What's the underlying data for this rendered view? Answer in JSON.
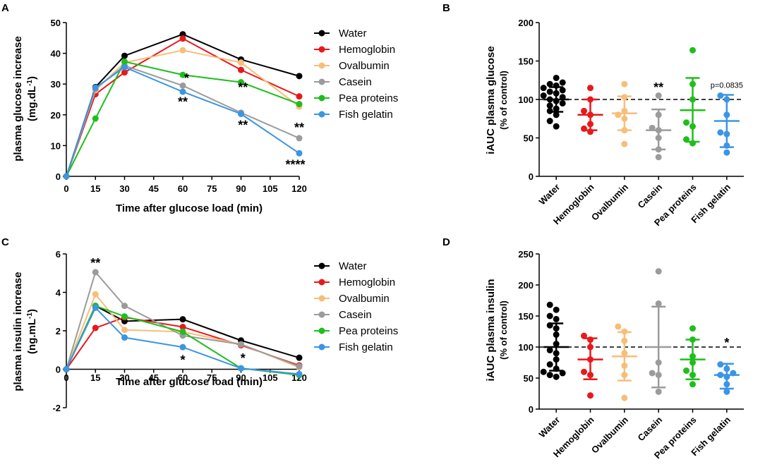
{
  "panels": {
    "A": "A",
    "B": "B",
    "C": "C",
    "D": "D"
  },
  "colors": {
    "Water": "#000000",
    "Hemoglobin": "#e8181b",
    "Ovalbumin": "#f7be7a",
    "Casein": "#9b9b9b",
    "Pea proteins": "#1fbe1d",
    "Fish gelatin": "#3a95e4"
  },
  "chart_data": [
    {
      "id": "A",
      "type": "line",
      "xlabel": "Time after glucose load (min)",
      "ylabel": "plasma glucose increase",
      "yunit": "(mg.dL-1)",
      "x": [
        0,
        15,
        30,
        60,
        90,
        120
      ],
      "xticks": [
        "0",
        "15",
        "30",
        "45",
        "60",
        "75",
        "90",
        "105",
        "120"
      ],
      "xlim": [
        0,
        120
      ],
      "ylim": [
        0,
        50
      ],
      "yticks": [
        "0",
        "10",
        "20",
        "30",
        "40",
        "50"
      ],
      "series": [
        {
          "name": "Water",
          "values": [
            0,
            29,
            39.2,
            46.2,
            38,
            32.6
          ]
        },
        {
          "name": "Hemoglobin",
          "values": [
            0,
            26.7,
            33.8,
            44.8,
            34.6,
            26
          ]
        },
        {
          "name": "Ovalbumin",
          "values": [
            0,
            28,
            37,
            41,
            37,
            22.7
          ]
        },
        {
          "name": "Casein",
          "values": [
            0,
            28.5,
            36,
            29.5,
            20.7,
            12.4
          ]
        },
        {
          "name": "Pea proteins",
          "values": [
            0,
            18.8,
            37.3,
            33,
            30.6,
            23.5
          ]
        },
        {
          "name": "Fish gelatin",
          "values": [
            0,
            28.8,
            35.5,
            27.5,
            20.3,
            7.5
          ]
        }
      ],
      "annotations": [
        {
          "text": "*",
          "x": 62,
          "y": 30.5
        },
        {
          "text": "**",
          "x": 60,
          "y": 22.8
        },
        {
          "text": "**",
          "x": 91,
          "y": 27.5
        },
        {
          "text": "**",
          "x": 91,
          "y": 15.3
        },
        {
          "text": "**",
          "x": 120,
          "y": 14.5
        },
        {
          "text": "****",
          "x": 118,
          "y": 2.4
        }
      ]
    },
    {
      "id": "C",
      "type": "line",
      "xlabel": "Time after glucose load (min)",
      "ylabel": "plasma insulin increase",
      "yunit": "(ng.mL-1)",
      "x": [
        0,
        15,
        30,
        60,
        90,
        120
      ],
      "xticks": [
        "0",
        "15",
        "30",
        "45",
        "60",
        "75",
        "90",
        "105",
        "120"
      ],
      "xlim": [
        0,
        120
      ],
      "ylim": [
        -2,
        6
      ],
      "yticks": [
        "-2",
        "0",
        "2",
        "4",
        "6"
      ],
      "series": [
        {
          "name": "Water",
          "values": [
            0,
            3.3,
            2.5,
            2.6,
            1.5,
            0.6
          ]
        },
        {
          "name": "Hemoglobin",
          "values": [
            0,
            2.15,
            2.7,
            2.2,
            1.25,
            0.2
          ]
        },
        {
          "name": "Ovalbumin",
          "values": [
            0,
            3.9,
            2.05,
            1.95,
            1.3,
            0.1
          ]
        },
        {
          "name": "Casein",
          "values": [
            0,
            5.05,
            3.3,
            1.75,
            1.3,
            0.15
          ]
        },
        {
          "name": "Pea proteins",
          "values": [
            0,
            3.3,
            2.75,
            1.95,
            0.05,
            -0.3
          ]
        },
        {
          "name": "Fish gelatin",
          "values": [
            0,
            3.2,
            1.65,
            1.15,
            0.05,
            -0.25
          ]
        }
      ],
      "annotations": [
        {
          "text": "**",
          "x": 15,
          "y": 5.3
        },
        {
          "text": "*",
          "x": 60,
          "y": 0.25
        },
        {
          "text": "*",
          "x": 91,
          "y": 0.35
        }
      ]
    },
    {
      "id": "B",
      "type": "scatter",
      "ylabel": "iAUC plasma glucose",
      "yunit": "(% of control)",
      "categories": [
        "Water",
        "Hemoglobin",
        "Ovalbumin",
        "Casein",
        "Pea proteins",
        "Fish gelatin"
      ],
      "ylim": [
        0,
        200
      ],
      "yticks": [
        "0",
        "50",
        "100",
        "150",
        "200"
      ],
      "reference_line": 100,
      "groups": [
        {
          "name": "Water",
          "mean": 100,
          "sd_low": 84,
          "sd_high": 116,
          "points": [
            65,
            72,
            80,
            85,
            88,
            92,
            95,
            98,
            100,
            103,
            105,
            108,
            110,
            112,
            115,
            118,
            120,
            122,
            128
          ]
        },
        {
          "name": "Hemoglobin",
          "mean": 80,
          "sd_low": 60,
          "sd_high": 100,
          "points": [
            58,
            62,
            68,
            80,
            85,
            100,
            115
          ]
        },
        {
          "name": "Ovalbumin",
          "mean": 82,
          "sd_low": 60,
          "sd_high": 104,
          "points": [
            42,
            60,
            75,
            80,
            85,
            103,
            120
          ]
        },
        {
          "name": "Casein",
          "mean": 60,
          "sd_low": 35,
          "sd_high": 87,
          "points": [
            25,
            35,
            50,
            60,
            63,
            80,
            105
          ]
        },
        {
          "name": "Pea proteins",
          "mean": 86,
          "sd_low": 45,
          "sd_high": 128,
          "points": [
            43,
            48,
            65,
            70,
            100,
            120,
            164
          ]
        },
        {
          "name": "Fish gelatin",
          "mean": 72,
          "sd_low": 38,
          "sd_high": 106,
          "points": [
            31,
            40,
            55,
            57,
            80,
            100,
            105
          ]
        }
      ],
      "annotations": [
        {
          "text": "**",
          "group": "Casein",
          "y": 110
        },
        {
          "text": "p=0.0835",
          "group": "Fish gelatin",
          "y": 115
        }
      ]
    },
    {
      "id": "D",
      "type": "scatter",
      "ylabel": "iAUC plasma insulin",
      "yunit": "(% of control)",
      "categories": [
        "Water",
        "Hemoglobin",
        "Ovalbumin",
        "Casein",
        "Pea proteins",
        "Fish gelatin"
      ],
      "ylim": [
        0,
        250
      ],
      "yticks": [
        "0",
        "50",
        "100",
        "150",
        "200",
        "250"
      ],
      "reference_line": 100,
      "groups": [
        {
          "name": "Water",
          "mean": 100,
          "sd_low": 62,
          "sd_high": 138,
          "points": [
            52,
            55,
            58,
            60,
            65,
            72,
            80,
            90,
            95,
            105,
            120,
            130,
            135,
            145,
            150,
            160,
            168
          ]
        },
        {
          "name": "Hemoglobin",
          "mean": 80,
          "sd_low": 48,
          "sd_high": 114,
          "points": [
            22,
            55,
            60,
            80,
            100,
            112,
            118
          ]
        },
        {
          "name": "Ovalbumin",
          "mean": 85,
          "sd_low": 46,
          "sd_high": 124,
          "points": [
            18,
            55,
            70,
            90,
            110,
            125,
            133
          ]
        },
        {
          "name": "Casein",
          "mean": 100,
          "sd_low": 35,
          "sd_high": 165,
          "points": [
            28,
            55,
            58,
            75,
            170,
            222
          ]
        },
        {
          "name": "Pea proteins",
          "mean": 80,
          "sd_low": 48,
          "sd_high": 112,
          "points": [
            40,
            55,
            62,
            75,
            85,
            112,
            130
          ]
        },
        {
          "name": "Fish gelatin",
          "mean": 55,
          "sd_low": 33,
          "sd_high": 73,
          "points": [
            28,
            40,
            52,
            55,
            58,
            65,
            72
          ]
        }
      ],
      "annotations": [
        {
          "text": "*",
          "group": "Fish gelatin",
          "y": 100
        }
      ]
    }
  ]
}
